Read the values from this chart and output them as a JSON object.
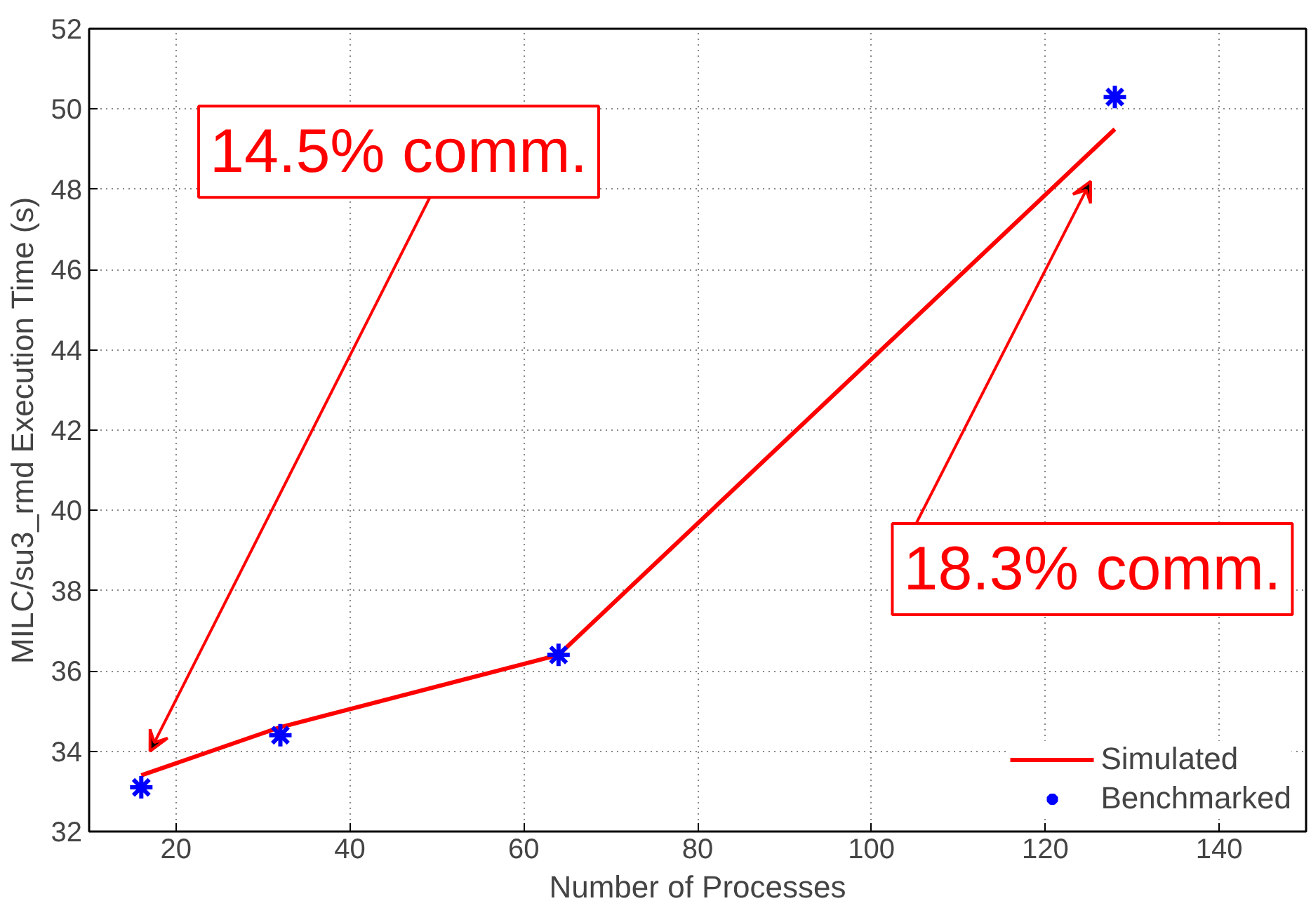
{
  "chart_data": {
    "type": "line",
    "xlabel": "Number of Processes",
    "ylabel": "MILC/su3_rmd Execution Time (s)",
    "x": [
      16,
      32,
      64,
      128
    ],
    "series": [
      {
        "name": "Simulated",
        "type": "line",
        "color": "#ff0000",
        "values": [
          33.4,
          34.6,
          36.4,
          49.5
        ],
        "marker": "none"
      },
      {
        "name": "Benchmarked",
        "type": "scatter",
        "color": "#0000ff",
        "values": [
          33.1,
          34.4,
          36.4,
          50.3
        ],
        "marker": "cross"
      }
    ],
    "annotations": [
      "14.5% comm.",
      "18.3% comm."
    ],
    "xlim": [
      10,
      150
    ],
    "ylim": [
      32,
      52
    ],
    "xticks": [
      20,
      40,
      60,
      80,
      100,
      120,
      140
    ],
    "yticks": [
      32,
      34,
      36,
      38,
      40,
      42,
      44,
      46,
      48,
      50,
      52
    ],
    "grid": true,
    "legend": "bottom right"
  }
}
